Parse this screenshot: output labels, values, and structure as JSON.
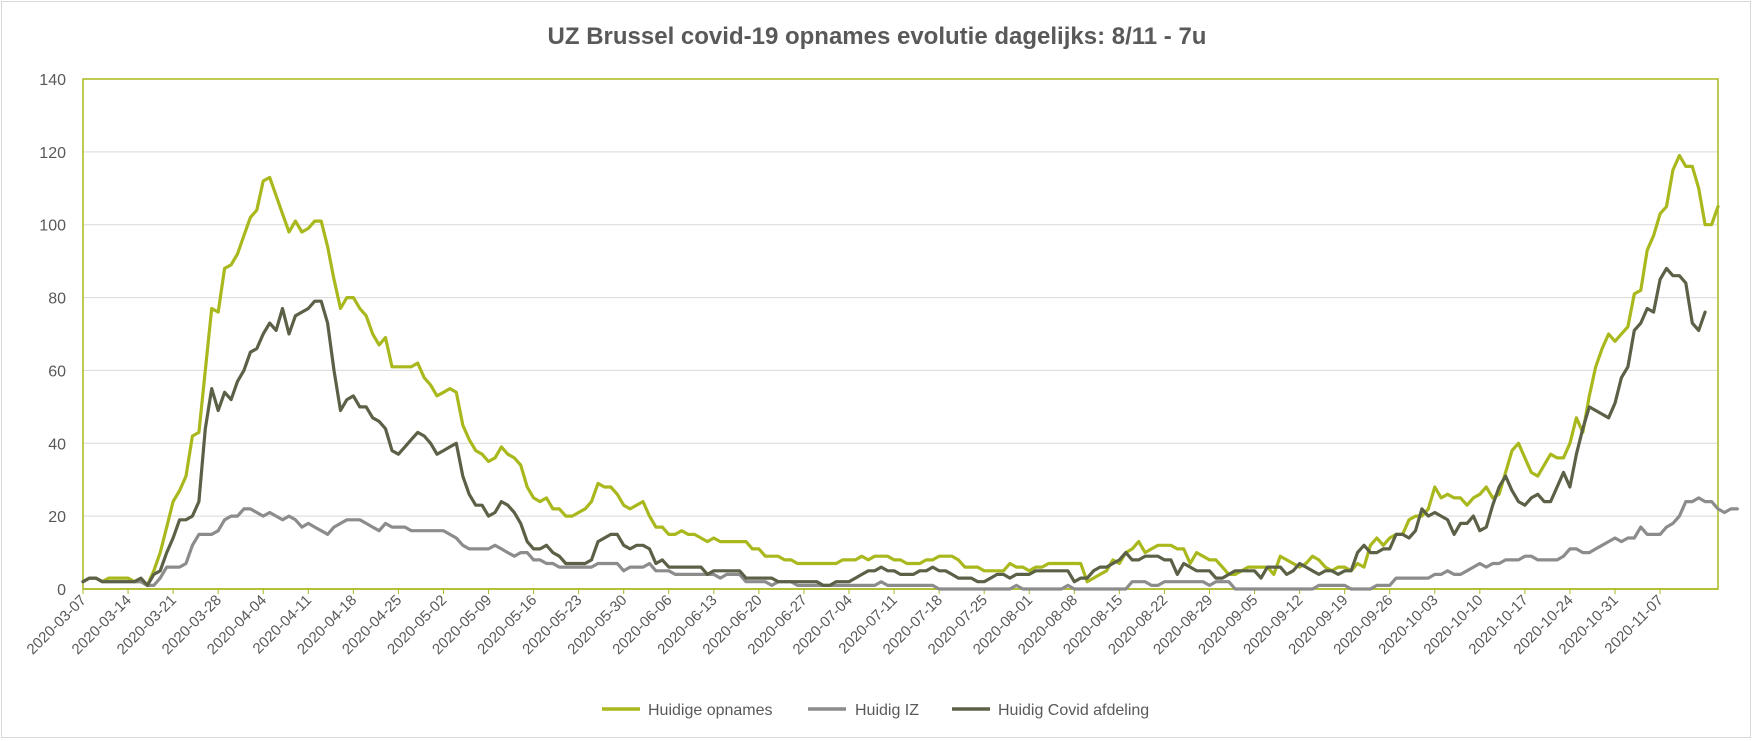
{
  "chart_data": {
    "type": "line",
    "title": "UZ Brussel covid-19 opnames evolutie dagelijks: 8/11 - 7u",
    "xlabel": "",
    "ylabel": "",
    "ylim": [
      0,
      140
    ],
    "yticks": [
      0,
      20,
      40,
      60,
      80,
      100,
      120,
      140
    ],
    "grid": true,
    "legend_position": "bottom",
    "start_date": "2020-03-07",
    "x_tick_labels": [
      "2020-03-07",
      "2020-03-14",
      "2020-03-21",
      "2020-03-28",
      "2020-04-04",
      "2020-04-11",
      "2020-04-18",
      "2020-04-25",
      "2020-05-02",
      "2020-05-09",
      "2020-05-16",
      "2020-05-23",
      "2020-05-30",
      "2020-06-06",
      "2020-06-13",
      "2020-06-20",
      "2020-06-27",
      "2020-07-04",
      "2020-07-11",
      "2020-07-18",
      "2020-07-25",
      "2020-08-01",
      "2020-08-08",
      "2020-08-15",
      "2020-08-22",
      "2020-08-29",
      "2020-09-05",
      "2020-09-12",
      "2020-09-19",
      "2020-09-26",
      "2020-10-03",
      "2020-10-10",
      "2020-10-17",
      "2020-10-24",
      "2020-10-31",
      "2020-11-07"
    ],
    "series": [
      {
        "name": "Huidige opnames",
        "color": "#a9b81c",
        "values": [
          2,
          3,
          3,
          2,
          3,
          3,
          3,
          3,
          2,
          2,
          1,
          5,
          10,
          17,
          24,
          27,
          31,
          42,
          43,
          60,
          77,
          76,
          88,
          89,
          92,
          97,
          102,
          104,
          112,
          113,
          108,
          103,
          98,
          101,
          98,
          99,
          101,
          101,
          94,
          85,
          77,
          80,
          80,
          77,
          75,
          70,
          67,
          69,
          61,
          61,
          61,
          61,
          62,
          58,
          56,
          53,
          54,
          55,
          54,
          45,
          41,
          38,
          37,
          35,
          36,
          39,
          37,
          36,
          34,
          28,
          25,
          24,
          25,
          22,
          22,
          20,
          20,
          21,
          22,
          24,
          29,
          28,
          28,
          26,
          23,
          22,
          23,
          24,
          20,
          17,
          17,
          15,
          15,
          16,
          15,
          15,
          14,
          13,
          14,
          13,
          13,
          13,
          13,
          13,
          11,
          11,
          9,
          9,
          9,
          8,
          8,
          7,
          7,
          7,
          7,
          7,
          7,
          7,
          8,
          8,
          8,
          9,
          8,
          9,
          9,
          9,
          8,
          8,
          7,
          7,
          7,
          8,
          8,
          9,
          9,
          9,
          8,
          6,
          6,
          6,
          5,
          5,
          5,
          5,
          7,
          6,
          6,
          5,
          6,
          6,
          7,
          7,
          7,
          7,
          7,
          7,
          2,
          3,
          4,
          5,
          8,
          7,
          10,
          11,
          13,
          10,
          11,
          12,
          12,
          12,
          11,
          11,
          7,
          10,
          9,
          8,
          8,
          6,
          4,
          4,
          5,
          6,
          6,
          6,
          6,
          4,
          9,
          8,
          7,
          6,
          7,
          9,
          8,
          6,
          5,
          6,
          6,
          5,
          7,
          6,
          12,
          14,
          12,
          14,
          15,
          15,
          19,
          20,
          20,
          22,
          28,
          25,
          26,
          25,
          25,
          23,
          25,
          26,
          28,
          25,
          26,
          32,
          38,
          40,
          36,
          32,
          31,
          34,
          37,
          36,
          36,
          40,
          47,
          43,
          53,
          61,
          66,
          70,
          68,
          70,
          72,
          81,
          82,
          93,
          97,
          103,
          105,
          115,
          119,
          116,
          116,
          110,
          100,
          100,
          105
        ]
      },
      {
        "name": "Huidig IZ",
        "color": "#8c8c8c",
        "values": [
          2,
          3,
          3,
          2,
          2,
          2,
          2,
          2,
          2,
          2,
          1,
          1,
          3,
          6,
          6,
          6,
          7,
          12,
          15,
          15,
          15,
          16,
          19,
          20,
          20,
          22,
          22,
          21,
          20,
          21,
          20,
          19,
          20,
          19,
          17,
          18,
          17,
          16,
          15,
          17,
          18,
          19,
          19,
          19,
          18,
          17,
          16,
          18,
          17,
          17,
          17,
          16,
          16,
          16,
          16,
          16,
          16,
          15,
          14,
          12,
          11,
          11,
          11,
          11,
          12,
          11,
          10,
          9,
          10,
          10,
          8,
          8,
          7,
          7,
          6,
          6,
          6,
          6,
          6,
          6,
          7,
          7,
          7,
          7,
          5,
          6,
          6,
          6,
          7,
          5,
          5,
          5,
          4,
          4,
          4,
          4,
          4,
          4,
          4,
          3,
          4,
          4,
          4,
          2,
          2,
          2,
          2,
          1,
          2,
          2,
          2,
          1,
          1,
          1,
          1,
          1,
          1,
          1,
          1,
          1,
          1,
          1,
          1,
          1,
          2,
          1,
          1,
          1,
          1,
          1,
          1,
          1,
          1,
          0,
          0,
          0,
          0,
          0,
          0,
          0,
          0,
          0,
          0,
          0,
          0,
          1,
          0,
          0,
          0,
          0,
          0,
          0,
          0,
          1,
          0,
          0,
          0,
          0,
          0,
          0,
          0,
          0,
          0,
          2,
          2,
          2,
          1,
          1,
          2,
          2,
          2,
          2,
          2,
          2,
          2,
          1,
          2,
          2,
          2,
          0,
          0,
          0,
          0,
          0,
          0,
          0,
          0,
          0,
          0,
          0,
          0,
          0,
          1,
          1,
          1,
          1,
          1,
          0,
          0,
          0,
          0,
          1,
          1,
          1,
          3,
          3,
          3,
          3,
          3,
          3,
          4,
          4,
          5,
          4,
          4,
          5,
          6,
          7,
          6,
          7,
          7,
          8,
          8,
          8,
          9,
          9,
          8,
          8,
          8,
          8,
          9,
          11,
          11,
          10,
          10,
          11,
          12,
          13,
          14,
          13,
          14,
          14,
          17,
          15,
          15,
          15,
          17,
          18,
          20,
          24,
          24,
          25,
          24,
          24,
          22,
          21,
          22,
          22
        ]
      },
      {
        "name": "Huidig Covid afdeling",
        "color": "#5b6147",
        "values": [
          2,
          3,
          3,
          2,
          2,
          2,
          2,
          2,
          2,
          3,
          1,
          4,
          5,
          10,
          14,
          19,
          19,
          20,
          24,
          44,
          55,
          49,
          54,
          52,
          57,
          60,
          65,
          66,
          70,
          73,
          71,
          77,
          70,
          75,
          76,
          77,
          79,
          79,
          73,
          60,
          49,
          52,
          53,
          50,
          50,
          47,
          46,
          44,
          38,
          37,
          39,
          41,
          43,
          42,
          40,
          37,
          38,
          39,
          40,
          31,
          26,
          23,
          23,
          20,
          21,
          24,
          23,
          21,
          18,
          13,
          11,
          11,
          12,
          10,
          9,
          7,
          7,
          7,
          7,
          8,
          13,
          14,
          15,
          15,
          12,
          11,
          12,
          12,
          11,
          7,
          8,
          6,
          6,
          6,
          6,
          6,
          6,
          4,
          5,
          5,
          5,
          5,
          5,
          3,
          3,
          3,
          3,
          3,
          2,
          2,
          2,
          2,
          2,
          2,
          2,
          1,
          1,
          2,
          2,
          2,
          3,
          4,
          5,
          5,
          6,
          5,
          5,
          4,
          4,
          4,
          5,
          5,
          6,
          5,
          5,
          4,
          3,
          3,
          3,
          2,
          2,
          3,
          4,
          4,
          3,
          4,
          4,
          4,
          5,
          5,
          5,
          5,
          5,
          5,
          2,
          3,
          3,
          5,
          6,
          6,
          7,
          8,
          10,
          8,
          8,
          9,
          9,
          9,
          8,
          8,
          4,
          7,
          6,
          5,
          5,
          5,
          3,
          3,
          4,
          5,
          5,
          5,
          5,
          3,
          6,
          6,
          6,
          4,
          5,
          7,
          6,
          5,
          4,
          5,
          5,
          4,
          5,
          5,
          10,
          12,
          10,
          10,
          11,
          11,
          15,
          15,
          14,
          16,
          22,
          20,
          21,
          20,
          19,
          15,
          18,
          18,
          20,
          16,
          17,
          23,
          28,
          31,
          27,
          24,
          23,
          25,
          26,
          24,
          24,
          28,
          32,
          28,
          37,
          44,
          50,
          49,
          48,
          47,
          51,
          58,
          61,
          71,
          73,
          77,
          76,
          85,
          88,
          86,
          86,
          84,
          73,
          71,
          76
        ]
      }
    ]
  }
}
